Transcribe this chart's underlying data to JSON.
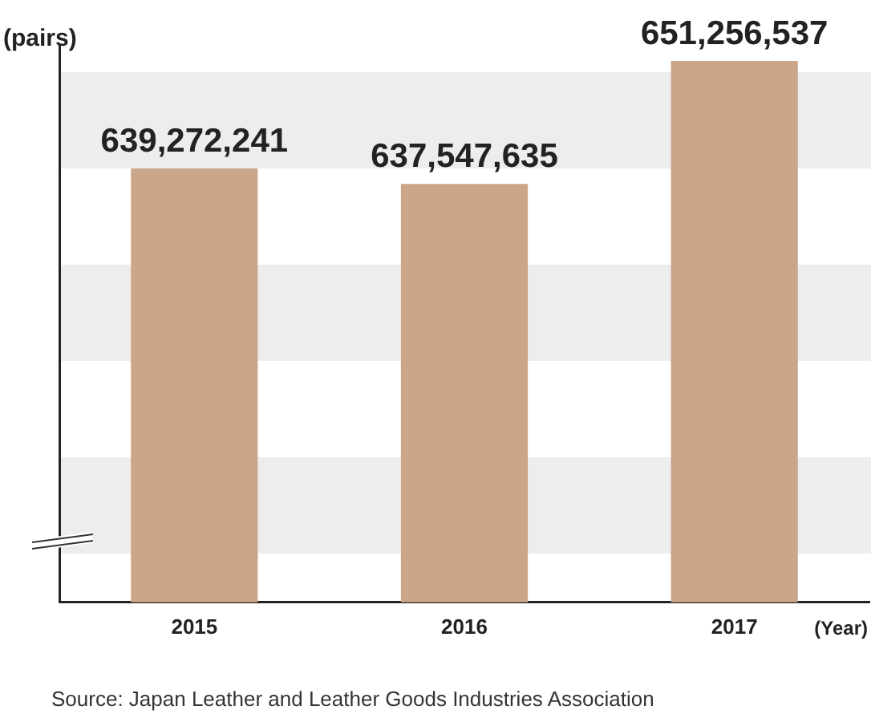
{
  "chart_data": {
    "type": "bar",
    "ylabel": "(pairs)",
    "xlabel": "(Year)",
    "categories": [
      "2015",
      "2016",
      "2017"
    ],
    "values": [
      639272241,
      637547635,
      651256537
    ],
    "value_labels": [
      "639,272,241",
      "637,547,635",
      "651,256,537"
    ],
    "color": "#cba688",
    "tick_labels": "x",
    "grid": false,
    "legend": false,
    "annotations": [
      "Source: Japan Leather and Leather Goods Industries Association"
    ]
  }
}
